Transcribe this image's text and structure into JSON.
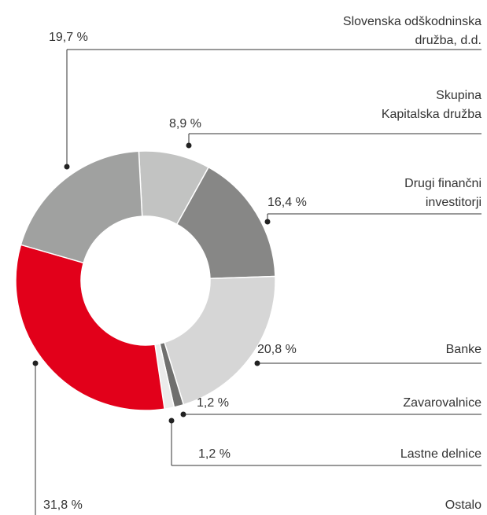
{
  "chart_data": {
    "type": "donut",
    "categories": [
      "Skupina\nKapitalska družba",
      "Drugi finančni\ninvestitorji",
      "Banke",
      "Zavarovalnice",
      "Lastne delnice",
      "Ostalo",
      "Slovenska odškodninska\ndružba, d.d."
    ],
    "values": [
      8.9,
      16.4,
      20.8,
      1.2,
      1.2,
      31.8,
      19.7
    ],
    "value_labels": [
      "8,9 %",
      "16,4 %",
      "20,8 %",
      "1,2 %",
      "1,2 %",
      "31,8 %",
      "19,7 %"
    ],
    "colors": [
      "#c2c3c2",
      "#878786",
      "#d6d6d6",
      "#6f6f6e",
      "#ebebeb",
      "#e2001a",
      "#a0a1a0"
    ]
  }
}
